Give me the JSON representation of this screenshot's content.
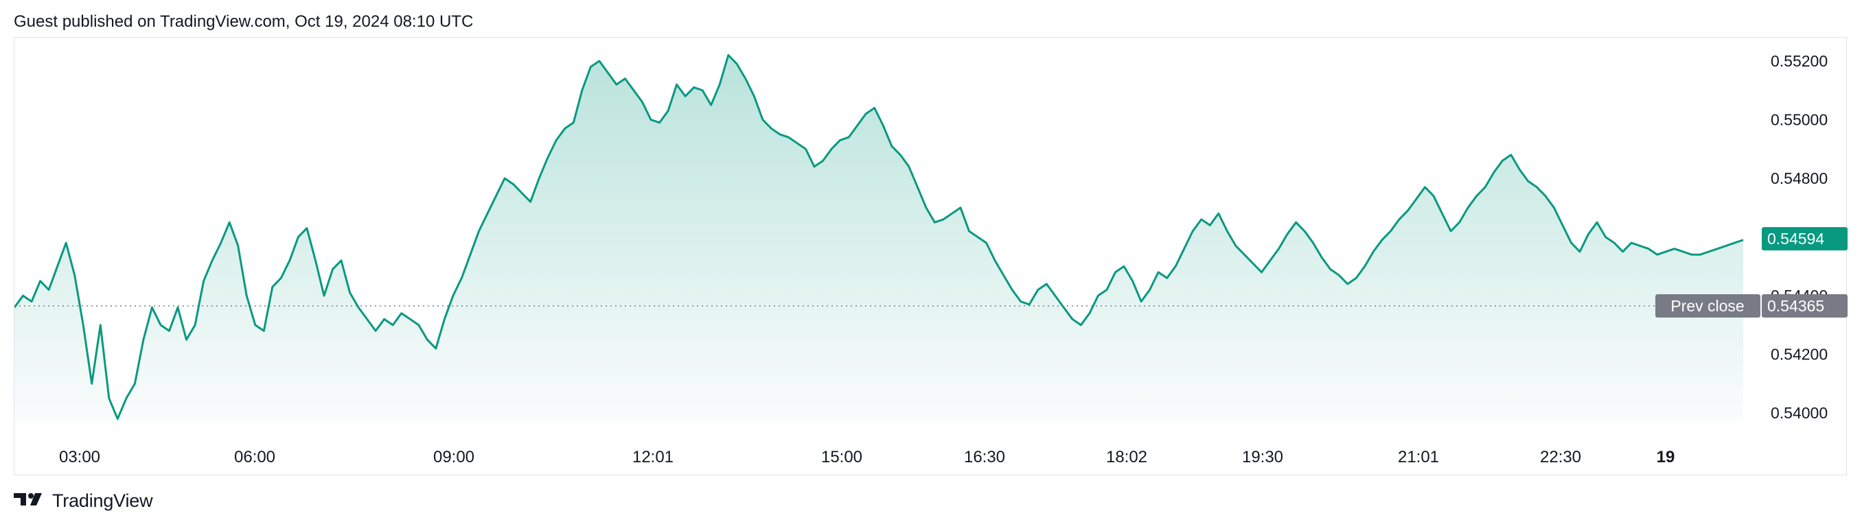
{
  "header": {
    "text": "Guest published on TradingView.com, Oct 19, 2024 08:10 UTC"
  },
  "footer": {
    "brand": "TradingView",
    "logo_icon": "tradingview-logo-icon"
  },
  "colors": {
    "line": "#089981",
    "area_top": "#089981",
    "last_label_bg": "#089981",
    "prev_close_bg": "#787b86",
    "axis_text": "#131722",
    "ref_line": "#787b86"
  },
  "chart_data": {
    "type": "area",
    "title": "",
    "xlabel": "",
    "ylabel": "",
    "ylim": [
      0.5397,
      0.5527
    ],
    "y_ticks": [
      "0.54000",
      "0.54200",
      "0.54400",
      "0.54800",
      "0.55000",
      "0.55200"
    ],
    "x_ticks": [
      "03:00",
      "06:00",
      "09:00",
      "12:01",
      "15:00",
      "16:30",
      "18:02",
      "19:30",
      "21:01",
      "22:30",
      "19"
    ],
    "grid": false,
    "last_value": 0.54594,
    "last_value_label": "0.54594",
    "prev_close": 0.54365,
    "prev_close_label": "Prev close",
    "prev_close_value_label": "0.54365",
    "series": [
      {
        "values": [
          0.5436,
          0.544,
          0.5438,
          0.5445,
          0.5442,
          0.545,
          0.5458,
          0.5447,
          0.543,
          0.541,
          0.543,
          0.5405,
          0.5398,
          0.5405,
          0.541,
          0.5425,
          0.5436,
          0.543,
          0.5428,
          0.5436,
          0.5425,
          0.543,
          0.5445,
          0.5452,
          0.5458,
          0.5465,
          0.5457,
          0.544,
          0.543,
          0.5428,
          0.5443,
          0.5446,
          0.5452,
          0.546,
          0.5463,
          0.5452,
          0.544,
          0.5449,
          0.5452,
          0.5441,
          0.5436,
          0.5432,
          0.5428,
          0.5432,
          0.543,
          0.5434,
          0.5432,
          0.543,
          0.5425,
          0.5422,
          0.5432,
          0.544,
          0.5446,
          0.5454,
          0.5462,
          0.5468,
          0.5474,
          0.548,
          0.5478,
          0.5475,
          0.5472,
          0.548,
          0.5487,
          0.5493,
          0.5497,
          0.5499,
          0.551,
          0.5518,
          0.552,
          0.5516,
          0.5512,
          0.5514,
          0.551,
          0.5506,
          0.55,
          0.5499,
          0.5503,
          0.5512,
          0.5508,
          0.5511,
          0.551,
          0.5505,
          0.5512,
          0.5522,
          0.5519,
          0.5514,
          0.5508,
          0.55,
          0.5497,
          0.5495,
          0.5494,
          0.5492,
          0.549,
          0.5484,
          0.5486,
          0.549,
          0.5493,
          0.5494,
          0.5498,
          0.5502,
          0.5504,
          0.5498,
          0.5491,
          0.5488,
          0.5484,
          0.5477,
          0.547,
          0.5465,
          0.5466,
          0.5468,
          0.547,
          0.5462,
          0.546,
          0.5458,
          0.5452,
          0.5447,
          0.5442,
          0.5438,
          0.5437,
          0.5442,
          0.5444,
          0.544,
          0.5436,
          0.5432,
          0.543,
          0.5434,
          0.544,
          0.5442,
          0.5448,
          0.545,
          0.5445,
          0.5438,
          0.5442,
          0.5448,
          0.5446,
          0.545,
          0.5456,
          0.5462,
          0.5466,
          0.5464,
          0.5468,
          0.5462,
          0.5457,
          0.5454,
          0.5451,
          0.5448,
          0.5452,
          0.5456,
          0.5461,
          0.5465,
          0.5462,
          0.5458,
          0.5453,
          0.5449,
          0.5447,
          0.5444,
          0.5446,
          0.545,
          0.5455,
          0.5459,
          0.5462,
          0.5466,
          0.5469,
          0.5473,
          0.5477,
          0.5474,
          0.5468,
          0.5462,
          0.5465,
          0.547,
          0.5474,
          0.5477,
          0.5482,
          0.5486,
          0.5488,
          0.5483,
          0.5479,
          0.5477,
          0.5474,
          0.547,
          0.5464,
          0.5458,
          0.5455,
          0.5461,
          0.5465,
          0.546,
          0.5458,
          0.5455,
          0.5458,
          0.5457,
          0.5456,
          0.5454,
          0.5455,
          0.5456,
          0.5455,
          0.5454,
          0.5454,
          0.5455,
          0.5456,
          0.5457,
          0.5458,
          0.5459
        ]
      }
    ]
  }
}
